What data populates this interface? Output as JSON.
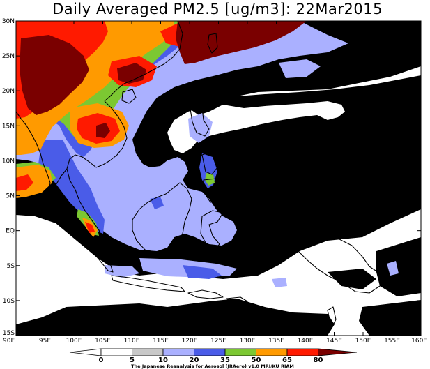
{
  "title": "Daily Averaged PM2.5 [ug/m3]: 22Mar2015",
  "credit": "The Japanese Reanalysis for Aerosol (JRAero) v1.0 MRI/KU RIAM",
  "lon_labels": [
    "90E",
    "95E",
    "100E",
    "105E",
    "110E",
    "115E",
    "120E",
    "125E",
    "130E",
    "135E",
    "140E",
    "145E",
    "150E",
    "155E",
    "160E"
  ],
  "lat_labels": [
    "30N",
    "25N",
    "20N",
    "15N",
    "10N",
    "5N",
    "EQ",
    "5S",
    "10S",
    "15S"
  ],
  "colorbar": {
    "levels": [
      "0",
      "5",
      "10",
      "20",
      "35",
      "50",
      "65",
      "80"
    ],
    "colors": [
      "#ffffff",
      "#ffffff",
      "#c8c8c8",
      "#aab0ff",
      "#4a5ce8",
      "#7cc832",
      "#ff9a00",
      "#ff1a00",
      "#7a0000"
    ]
  },
  "palette": {
    "grey": "#c8c8c8",
    "light_blue": "#aab0ff",
    "blue": "#4a5ce8",
    "green": "#7cc832",
    "orange": "#ff9a00",
    "red": "#ff1a00",
    "dark_red": "#7a0000"
  }
}
